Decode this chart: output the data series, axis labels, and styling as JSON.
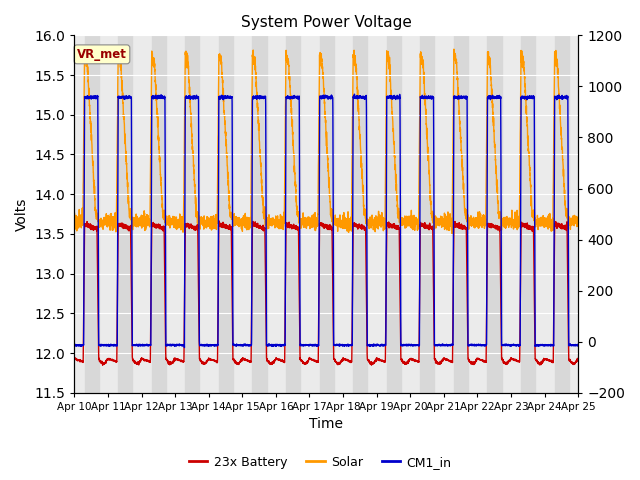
{
  "title": "System Power Voltage",
  "xlabel": "Time",
  "ylabel_left": "Volts",
  "ylim_left": [
    11.5,
    16.0
  ],
  "ylim_right": [
    -200,
    1200
  ],
  "n_days": 15,
  "x_tick_labels": [
    "Apr 10",
    "Apr 11",
    "Apr 12",
    "Apr 13",
    "Apr 14",
    "Apr 15",
    "Apr 16",
    "Apr 17",
    "Apr 18",
    "Apr 19",
    "Apr 20",
    "Apr 21",
    "Apr 22",
    "Apr 23",
    "Apr 24",
    "Apr 25"
  ],
  "legend_labels": [
    "23x Battery",
    "Solar",
    "CM1_in"
  ],
  "legend_colors": [
    "#cc0000",
    "#ff9900",
    "#0000cc"
  ],
  "vr_met_label": "VR_met",
  "vr_met_color_text": "#990000",
  "vr_met_bg": "#ffffcc",
  "background_color": "#ffffff",
  "plot_bg_color": "#ebebeb",
  "grid_color": "#ffffff",
  "shaded_band_color": "#d8d8d8",
  "battery_color": "#cc0000",
  "solar_color": "#ff9900",
  "cm1_color": "#0000cc",
  "line_width": 1.0,
  "day_start": 0.3,
  "day_end": 0.72,
  "battery_night": 11.93,
  "battery_day": 13.62,
  "battery_min": 11.88,
  "cm1_night": 12.1,
  "cm1_day": 15.22,
  "solar_peak": 15.75,
  "solar_shoulder": 13.75,
  "solar_night": 13.65,
  "right_yticks": [
    -200,
    0,
    200,
    400,
    600,
    800,
    1000,
    1200
  ],
  "left_yticks": [
    11.5,
    12.0,
    12.5,
    13.0,
    13.5,
    14.0,
    14.5,
    15.0,
    15.5,
    16.0
  ],
  "figsize": [
    6.4,
    4.8
  ],
  "dpi": 100
}
